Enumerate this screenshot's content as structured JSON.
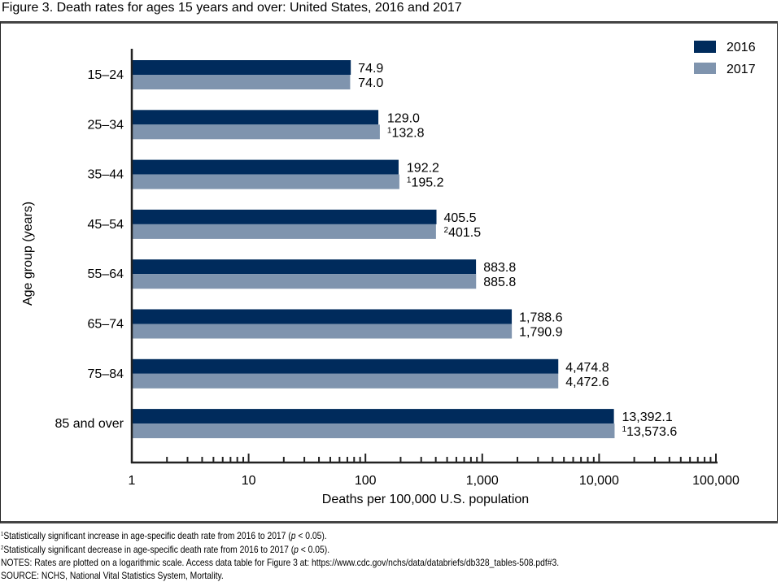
{
  "figure_title": "Figure 3. Death rates for ages 15 years and over: United States, 2016 and 2017",
  "chart_data": {
    "type": "bar",
    "orientation": "horizontal",
    "scale": "log",
    "title": "Figure 3. Death rates for ages 15 years and over: United States, 2016 and 2017",
    "xlabel": "Deaths per 100,000 U.S. population",
    "ylabel": "Age group (years)",
    "xlim": [
      1,
      100000
    ],
    "xticks": [
      1,
      10,
      100,
      1000,
      10000,
      100000
    ],
    "xtick_labels": [
      "1",
      "10",
      "100",
      "1,000",
      "10,000",
      "100,000"
    ],
    "grid": false,
    "legend_position": "top-right",
    "categories": [
      "15–24",
      "25–34",
      "35–44",
      "45–54",
      "55–64",
      "65–74",
      "75–84",
      "85 and over"
    ],
    "series": [
      {
        "name": "2016",
        "color": "#002b5c",
        "values": [
          74.9,
          129.0,
          192.2,
          405.5,
          883.8,
          1788.6,
          4474.8,
          13392.1
        ],
        "labels": [
          "74.9",
          "129.0",
          "192.2",
          "405.5",
          "883.8",
          "1,788.6",
          "4,474.8",
          "13,392.1"
        ],
        "label_marks": [
          "",
          "",
          "",
          "",
          "",
          "",
          "",
          ""
        ]
      },
      {
        "name": "2017",
        "color": "#7f94ae",
        "values": [
          74.0,
          132.8,
          195.2,
          401.5,
          885.8,
          1790.9,
          4472.6,
          13573.6
        ],
        "labels": [
          "74.0",
          "132.8",
          "195.2",
          "401.5",
          "885.8",
          "1,790.9",
          "4,472.6",
          "13,573.6"
        ],
        "label_marks": [
          "",
          "1",
          "1",
          "2",
          "",
          "",
          "",
          "1"
        ]
      }
    ]
  },
  "footnotes": {
    "note1_mark": "1",
    "note1_a": "Statistically significant increase in age-specific death rate from 2016 to 2017 (",
    "note1_p": "p",
    "note1_b": " < 0.05).",
    "note2_mark": "2",
    "note2_a": "Statistically significant decrease in age-specific death rate from 2016 to 2017 (",
    "note2_p": "p",
    "note2_b": " < 0.05).",
    "notes": "NOTES: Rates are plotted on a logarithmic scale. Access data table for Figure 3 at: https://www.cdc.gov/nchs/data/databriefs/db328_tables-508.pdf#3.",
    "source": "SOURCE: NCHS, National Vital Statistics System, Mortality."
  }
}
